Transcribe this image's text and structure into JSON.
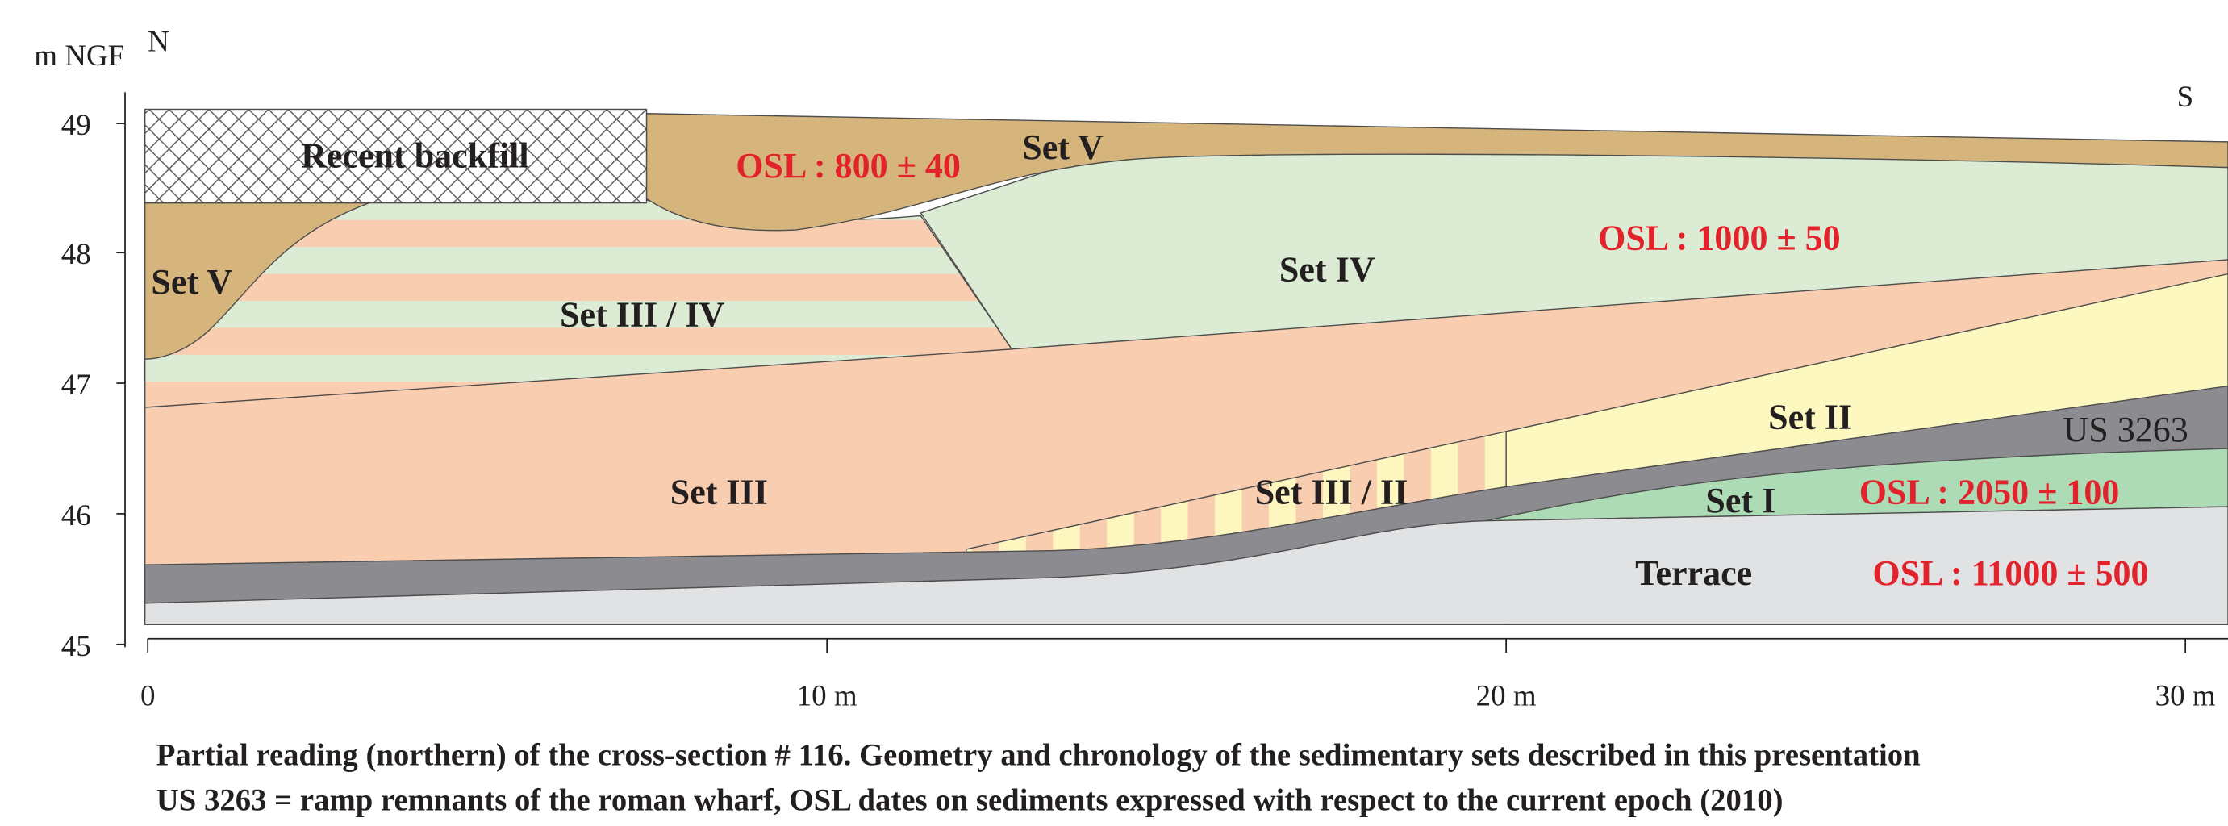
{
  "axes": {
    "y_unit": "m NGF",
    "y_ticks": [
      "49",
      "48",
      "47",
      "46",
      "45"
    ],
    "x_ticks": [
      "0",
      "10 m",
      "20 m",
      "30 m"
    ]
  },
  "orientation": {
    "north": "N",
    "south": "S"
  },
  "layers": [
    "Recent backfill",
    "Set V",
    "Set V",
    "Set IV",
    "Set III / IV",
    "Set III",
    "Set III / II",
    "Set II",
    "US 3263",
    "Set I",
    "Terrace"
  ],
  "osl_dates": [
    "OSL : 800 ± 40",
    "OSL : 1000 ± 50",
    "OSL : 2050  ± 100",
    "OSL : 11000 ± 500"
  ],
  "caption": [
    "Partial reading (northern) of the cross-section # 116. Geometry and chronology of the sedimentary sets described in this presentation",
    "US 3263 = ramp remnants of the roman wharf, OSL dates on sediments expressed with respect to the current epoch (2010)"
  ]
}
